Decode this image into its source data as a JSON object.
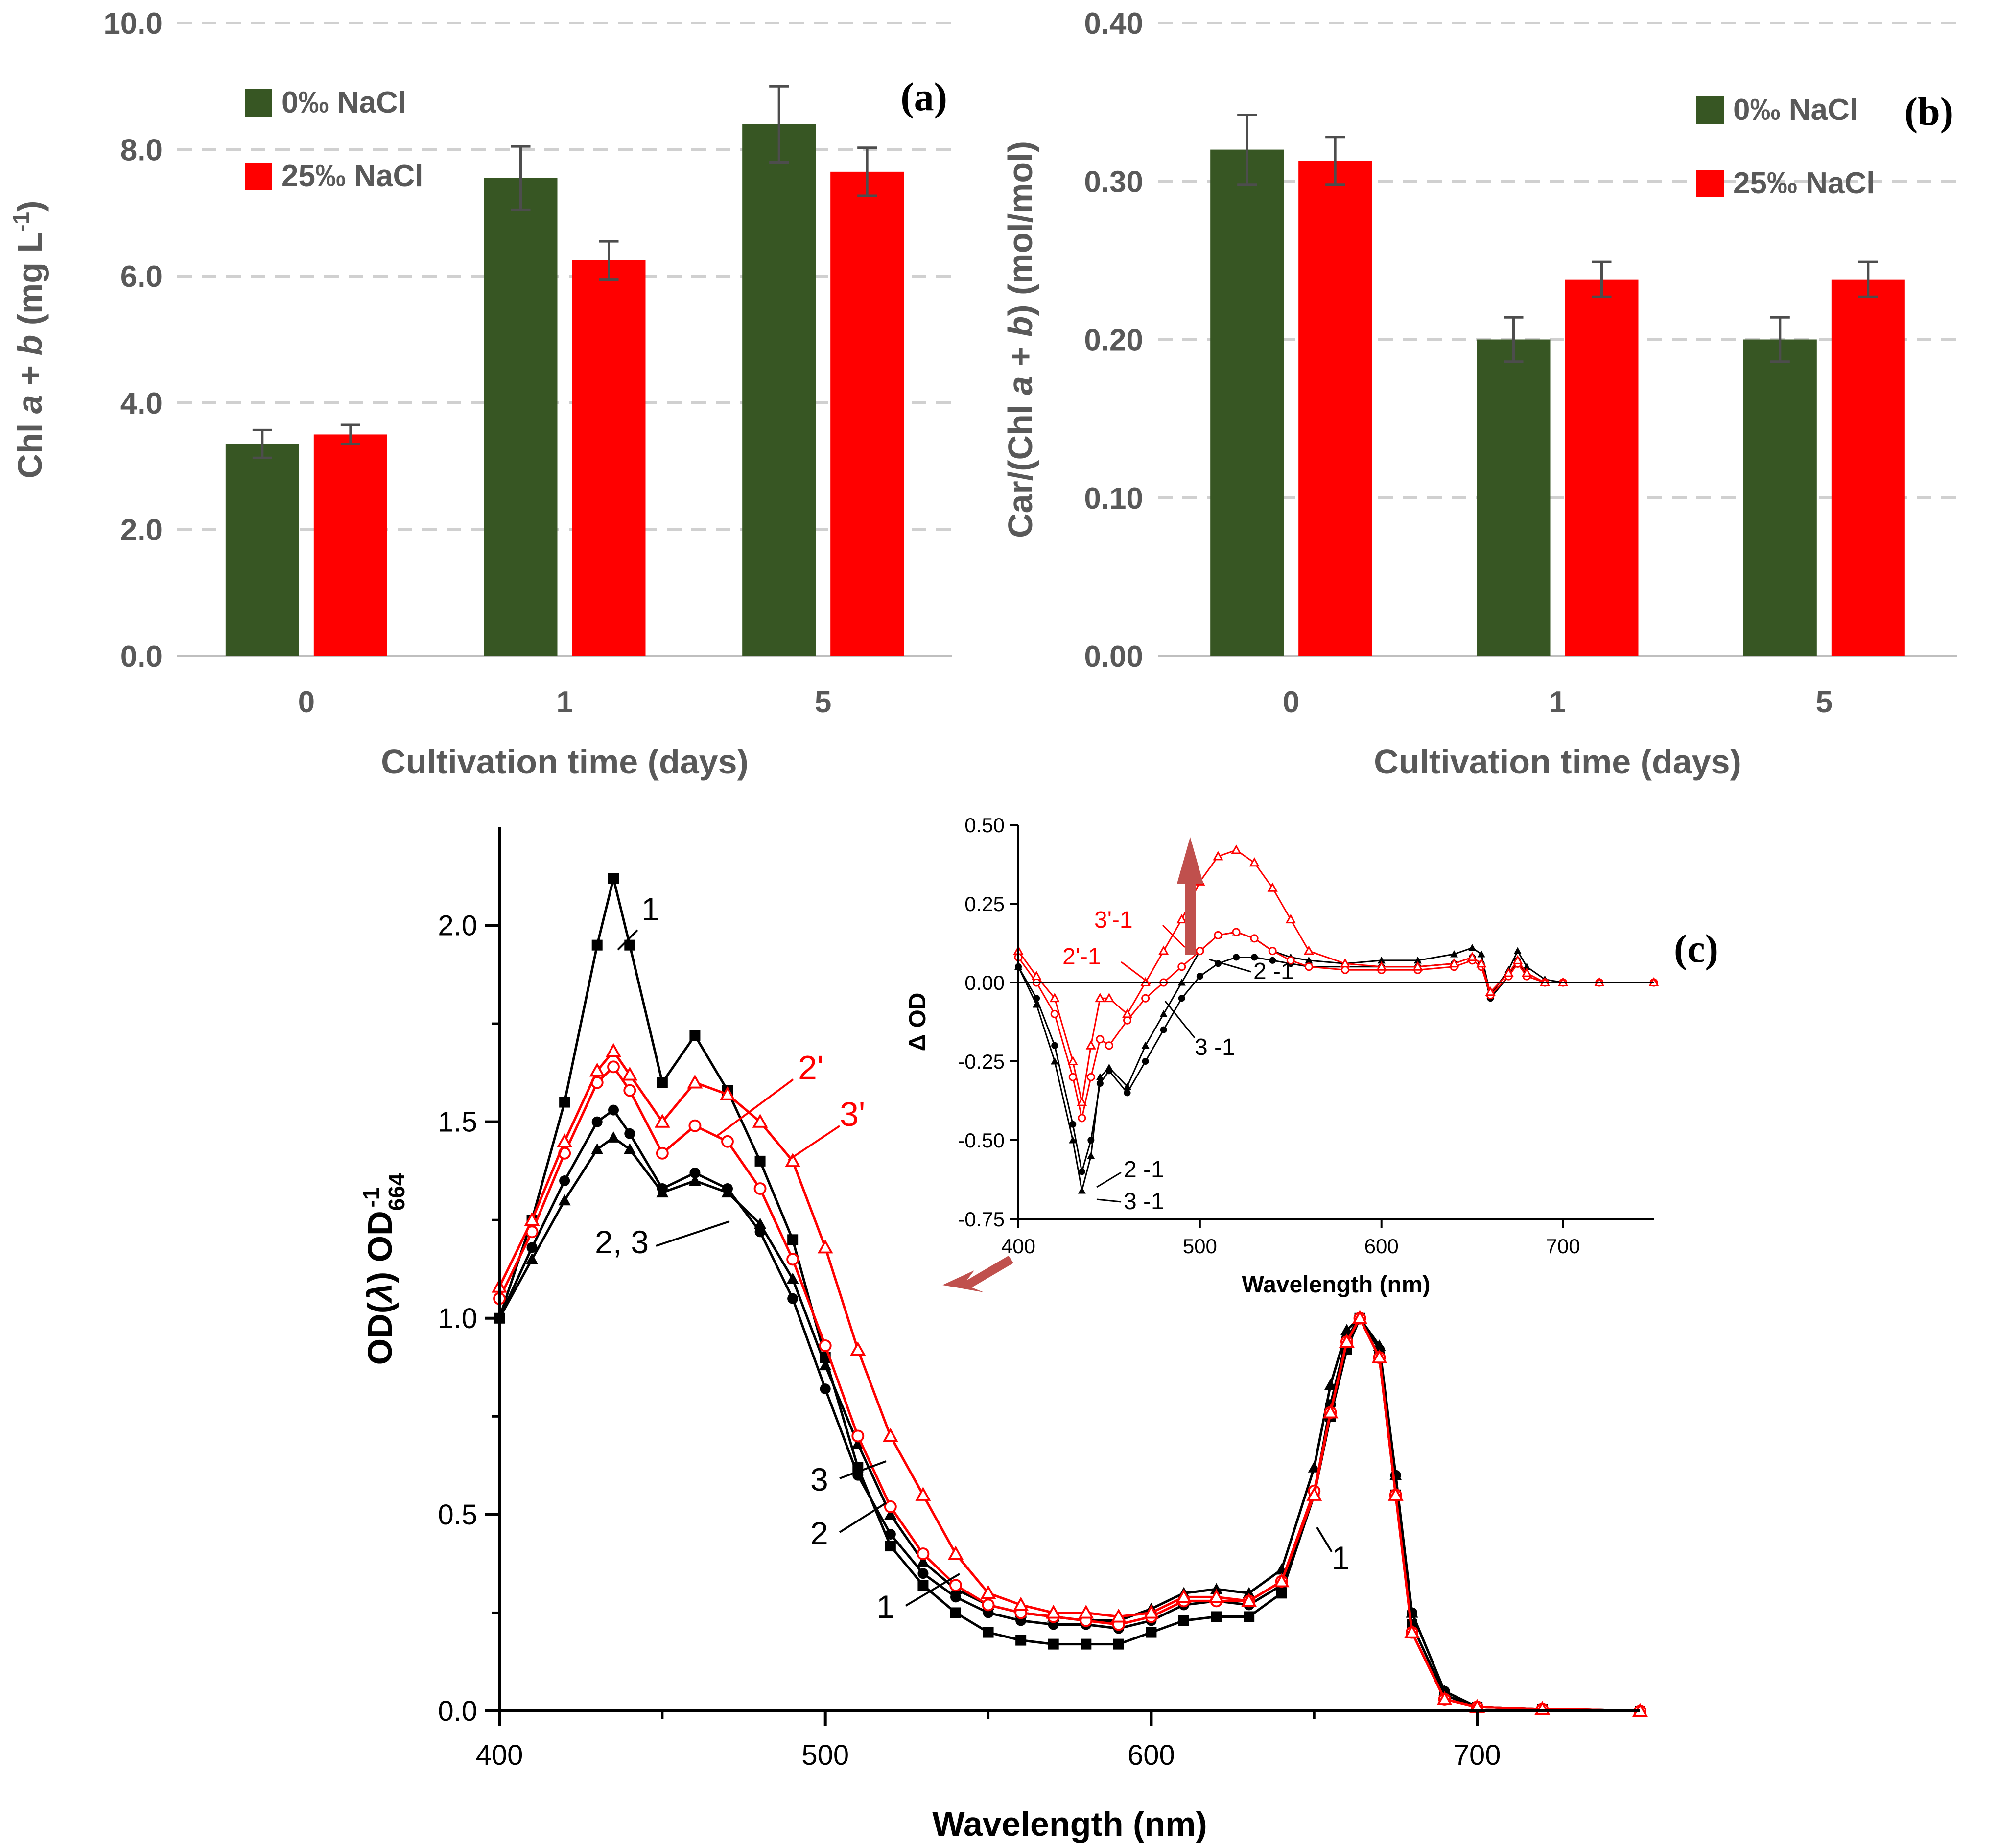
{
  "colors": {
    "green": "#375623",
    "red": "#FF0000",
    "black": "#000000",
    "grid": "#D0D0D0",
    "axis_gray": "#595959",
    "error_bar": "#4D4D4D",
    "arrow": "#C0504D"
  },
  "chart_data": [
    {
      "panel_label": "(a)",
      "type": "bar",
      "categories": [
        "0",
        "1",
        "5"
      ],
      "series": [
        {
          "name": "0‰ NaCl",
          "values": [
            3.35,
            7.55,
            8.4
          ],
          "errors": [
            0.22,
            0.5,
            0.6
          ]
        },
        {
          "name": "25‰ NaCl",
          "values": [
            3.5,
            6.25,
            7.65
          ],
          "errors": [
            0.15,
            0.3,
            0.38
          ]
        }
      ],
      "ylabel_parts": [
        "Chl ",
        "a",
        " + ",
        "b",
        " (mg L",
        "-1",
        ")"
      ],
      "xlabel": "Cultivation time (days)",
      "ylim": [
        0,
        10
      ],
      "yticks": [
        "0.0",
        "2.0",
        "4.0",
        "6.0",
        "8.0",
        "10.0"
      ],
      "grid": true,
      "legend": "top-left"
    },
    {
      "panel_label": "(b)",
      "type": "bar",
      "categories": [
        "0",
        "1",
        "5"
      ],
      "series": [
        {
          "name": "0‰ NaCl",
          "values": [
            0.32,
            0.2,
            0.2
          ],
          "errors": [
            0.022,
            0.014,
            0.014
          ]
        },
        {
          "name": "25‰ NaCl",
          "values": [
            0.313,
            0.238,
            0.238
          ],
          "errors": [
            0.015,
            0.011,
            0.011
          ]
        }
      ],
      "ylabel_parts": [
        "Car/(Chl ",
        "a",
        " + ",
        "b",
        ") (mol/mol)"
      ],
      "xlabel": "Cultivation time (days)",
      "ylim": [
        0,
        0.4
      ],
      "yticks": [
        "0.00",
        "0.10",
        "0.20",
        "0.30",
        "0.40"
      ],
      "grid": true,
      "legend": "top-right"
    },
    {
      "panel_label": "(c)",
      "type": "line",
      "xlabel": "Wavelength (nm)",
      "ylabel_parts": [
        "OD(",
        "λ",
        ") OD",
        "664",
        "-1"
      ],
      "xlim": [
        400,
        750
      ],
      "ylim": [
        0,
        2.25
      ],
      "xticks": [
        "400",
        "500",
        "600",
        "700"
      ],
      "yticks": [
        "0.0",
        "0.5",
        "1.0",
        "1.5",
        "2.0"
      ],
      "series": [
        {
          "id": "1",
          "label": "1",
          "color": "black",
          "marker": "square-filled",
          "x": [
            400,
            410,
            420,
            430,
            435,
            440,
            450,
            460,
            470,
            480,
            490,
            500,
            510,
            520,
            530,
            540,
            550,
            560,
            570,
            580,
            590,
            600,
            610,
            620,
            630,
            640,
            650,
            655,
            660,
            664,
            670,
            675,
            680,
            690,
            700,
            720,
            750
          ],
          "y": [
            1.0,
            1.25,
            1.55,
            1.95,
            2.12,
            1.95,
            1.6,
            1.72,
            1.58,
            1.4,
            1.2,
            0.9,
            0.62,
            0.42,
            0.32,
            0.25,
            0.2,
            0.18,
            0.17,
            0.17,
            0.17,
            0.2,
            0.23,
            0.24,
            0.24,
            0.3,
            0.55,
            0.75,
            0.92,
            1.0,
            0.9,
            0.55,
            0.22,
            0.04,
            0.01,
            0.005,
            0.0
          ]
        },
        {
          "id": "2",
          "label": "2",
          "color": "black",
          "marker": "circle-filled",
          "x": [
            400,
            410,
            420,
            430,
            435,
            440,
            450,
            460,
            470,
            480,
            490,
            500,
            510,
            520,
            530,
            540,
            550,
            560,
            570,
            580,
            590,
            600,
            610,
            620,
            630,
            640,
            650,
            655,
            660,
            664,
            670,
            675,
            680,
            690,
            700,
            720,
            750
          ],
          "y": [
            1.0,
            1.18,
            1.35,
            1.5,
            1.53,
            1.47,
            1.33,
            1.37,
            1.33,
            1.22,
            1.05,
            0.82,
            0.6,
            0.45,
            0.35,
            0.29,
            0.25,
            0.23,
            0.22,
            0.22,
            0.21,
            0.23,
            0.27,
            0.28,
            0.27,
            0.32,
            0.55,
            0.78,
            0.95,
            1.0,
            0.92,
            0.6,
            0.25,
            0.05,
            0.01,
            0.005,
            0.0
          ]
        },
        {
          "id": "3",
          "label": "3",
          "color": "black",
          "marker": "triangle-filled",
          "x": [
            400,
            410,
            420,
            430,
            435,
            440,
            450,
            460,
            470,
            480,
            490,
            500,
            510,
            520,
            530,
            540,
            550,
            560,
            570,
            580,
            590,
            600,
            610,
            620,
            630,
            640,
            650,
            655,
            660,
            664,
            670,
            675,
            680,
            690,
            700,
            720,
            750
          ],
          "y": [
            1.0,
            1.15,
            1.3,
            1.43,
            1.46,
            1.43,
            1.32,
            1.35,
            1.32,
            1.24,
            1.1,
            0.88,
            0.68,
            0.5,
            0.38,
            0.31,
            0.27,
            0.25,
            0.24,
            0.23,
            0.23,
            0.26,
            0.3,
            0.31,
            0.3,
            0.36,
            0.62,
            0.83,
            0.97,
            1.0,
            0.93,
            0.6,
            0.25,
            0.05,
            0.01,
            0.005,
            0.0
          ]
        },
        {
          "id": "2'",
          "label": "2'",
          "color": "red",
          "marker": "circle-open",
          "x": [
            400,
            410,
            420,
            430,
            435,
            440,
            450,
            460,
            470,
            480,
            490,
            500,
            510,
            520,
            530,
            540,
            550,
            560,
            570,
            580,
            590,
            600,
            610,
            620,
            630,
            640,
            650,
            655,
            660,
            664,
            670,
            675,
            680,
            690,
            700,
            720,
            750
          ],
          "y": [
            1.05,
            1.22,
            1.42,
            1.6,
            1.64,
            1.58,
            1.42,
            1.49,
            1.45,
            1.33,
            1.15,
            0.93,
            0.7,
            0.52,
            0.4,
            0.32,
            0.27,
            0.25,
            0.24,
            0.23,
            0.22,
            0.24,
            0.28,
            0.28,
            0.28,
            0.33,
            0.56,
            0.76,
            0.94,
            1.0,
            0.9,
            0.55,
            0.2,
            0.03,
            0.01,
            0.005,
            0.0
          ]
        },
        {
          "id": "3'",
          "label": "3'",
          "color": "red",
          "marker": "triangle-open",
          "x": [
            400,
            410,
            420,
            430,
            435,
            440,
            450,
            460,
            470,
            480,
            490,
            500,
            510,
            520,
            530,
            540,
            550,
            560,
            570,
            580,
            590,
            600,
            610,
            620,
            630,
            640,
            650,
            655,
            660,
            664,
            670,
            675,
            680,
            690,
            700,
            720,
            750
          ],
          "y": [
            1.08,
            1.25,
            1.45,
            1.63,
            1.68,
            1.62,
            1.5,
            1.6,
            1.57,
            1.5,
            1.4,
            1.18,
            0.92,
            0.7,
            0.55,
            0.4,
            0.3,
            0.27,
            0.25,
            0.25,
            0.24,
            0.25,
            0.29,
            0.29,
            0.28,
            0.33,
            0.55,
            0.76,
            0.94,
            1.0,
            0.9,
            0.55,
            0.2,
            0.03,
            0.01,
            0.005,
            0.0
          ]
        }
      ],
      "annotations": [
        "1",
        "2', 3'",
        "2, 3",
        "3",
        "2",
        "1",
        "1"
      ],
      "annotation_red": [
        "2'",
        "3'"
      ],
      "annotation_black": [
        "1",
        "2, 3",
        "3",
        "2",
        "1",
        "1"
      ],
      "inset": {
        "type": "line",
        "xlabel": "Wavelength (nm)",
        "ylabel": "Δ OD",
        "xlim": [
          400,
          750
        ],
        "ylim": [
          -0.75,
          0.5
        ],
        "xticks": [
          "400",
          "500",
          "600",
          "700"
        ],
        "yticks": [
          "-0.75",
          "-0.50",
          "-0.25",
          "0.00",
          "0.25",
          "0.50"
        ],
        "series": [
          {
            "label": "2 -1",
            "color": "black",
            "marker": "circle-filled",
            "x": [
              400,
              410,
              420,
              430,
              435,
              440,
              445,
              450,
              460,
              470,
              480,
              490,
              500,
              510,
              520,
              530,
              540,
              550,
              560,
              580,
              600,
              620,
              640,
              650,
              655,
              660,
              670,
              675,
              680,
              690,
              700,
              720,
              750
            ],
            "y": [
              0.05,
              -0.05,
              -0.2,
              -0.45,
              -0.6,
              -0.5,
              -0.32,
              -0.28,
              -0.35,
              -0.25,
              -0.15,
              -0.05,
              0.02,
              0.06,
              0.08,
              0.08,
              0.07,
              0.06,
              0.05,
              0.05,
              0.05,
              0.05,
              0.06,
              0.08,
              0.06,
              -0.05,
              0.02,
              0.07,
              0.02,
              0.0,
              0.0,
              0.0,
              0.0
            ]
          },
          {
            "label": "3 -1",
            "color": "black",
            "marker": "triangle-filled",
            "x": [
              400,
              410,
              420,
              430,
              435,
              440,
              445,
              450,
              460,
              470,
              480,
              490,
              500,
              510,
              520,
              530,
              540,
              550,
              560,
              580,
              600,
              620,
              640,
              650,
              655,
              660,
              670,
              675,
              680,
              690,
              700,
              720,
              750
            ],
            "y": [
              0.05,
              -0.07,
              -0.25,
              -0.5,
              -0.66,
              -0.55,
              -0.3,
              -0.27,
              -0.33,
              -0.2,
              -0.1,
              0.0,
              0.1,
              0.15,
              0.16,
              0.14,
              0.1,
              0.08,
              0.07,
              0.06,
              0.07,
              0.07,
              0.09,
              0.11,
              0.09,
              -0.04,
              0.04,
              0.1,
              0.05,
              0.01,
              0.0,
              0.0,
              0.0
            ]
          },
          {
            "label": "2'-1",
            "color": "red",
            "marker": "circle-open",
            "x": [
              400,
              410,
              420,
              430,
              435,
              440,
              445,
              450,
              460,
              470,
              480,
              490,
              500,
              510,
              520,
              530,
              540,
              550,
              560,
              580,
              600,
              620,
              640,
              650,
              655,
              660,
              670,
              675,
              680,
              690,
              700,
              720,
              750
            ],
            "y": [
              0.08,
              0.0,
              -0.1,
              -0.3,
              -0.43,
              -0.3,
              -0.18,
              -0.2,
              -0.12,
              -0.05,
              0.0,
              0.05,
              0.1,
              0.15,
              0.16,
              0.14,
              0.1,
              0.07,
              0.05,
              0.04,
              0.04,
              0.04,
              0.05,
              0.07,
              0.05,
              -0.04,
              0.02,
              0.06,
              0.02,
              0.0,
              0.0,
              0.0,
              0.0
            ]
          },
          {
            "label": "3'-1",
            "color": "red",
            "marker": "triangle-open",
            "x": [
              400,
              410,
              420,
              430,
              435,
              440,
              445,
              450,
              460,
              470,
              480,
              490,
              500,
              510,
              520,
              530,
              540,
              550,
              560,
              580,
              600,
              620,
              640,
              650,
              655,
              660,
              670,
              675,
              680,
              690,
              700,
              720,
              750
            ],
            "y": [
              0.1,
              0.02,
              -0.05,
              -0.25,
              -0.38,
              -0.2,
              -0.05,
              -0.05,
              -0.1,
              0.0,
              0.1,
              0.2,
              0.32,
              0.4,
              0.42,
              0.38,
              0.3,
              0.2,
              0.1,
              0.06,
              0.05,
              0.05,
              0.06,
              0.08,
              0.06,
              -0.03,
              0.03,
              0.07,
              0.03,
              0.0,
              0.0,
              0.0,
              0.0
            ]
          }
        ]
      }
    }
  ]
}
